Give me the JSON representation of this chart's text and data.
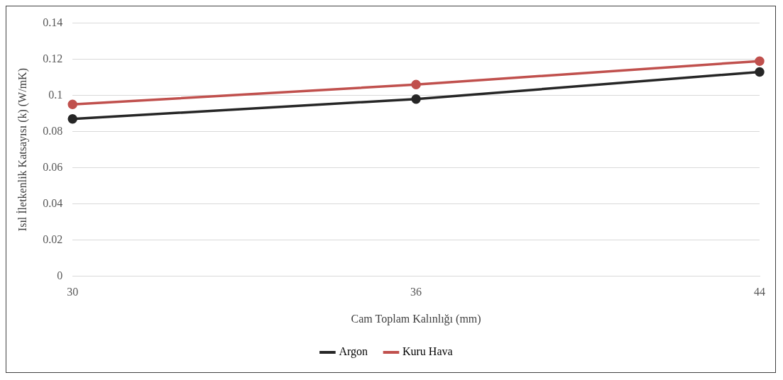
{
  "chart_data": {
    "type": "line",
    "xlabel": "Cam Toplam Kalınlığı (mm)",
    "ylabel": "Isıl İletkenlik Katsayısı (k) (W/mK)",
    "categories": [
      "30",
      "36",
      "44"
    ],
    "series": [
      {
        "name": "Argon",
        "color": "#262626",
        "values": [
          0.087,
          0.098,
          0.113
        ]
      },
      {
        "name": "Kuru Hava",
        "color": "#c0504d",
        "values": [
          0.095,
          0.106,
          0.119
        ]
      }
    ],
    "ylim": [
      0,
      0.14
    ],
    "yticks": [
      0,
      0.02,
      0.04,
      0.06,
      0.08,
      0.1,
      0.12,
      0.14
    ],
    "grid": "y",
    "legend": "bottom",
    "marker": "circle",
    "line_style": "solid"
  }
}
